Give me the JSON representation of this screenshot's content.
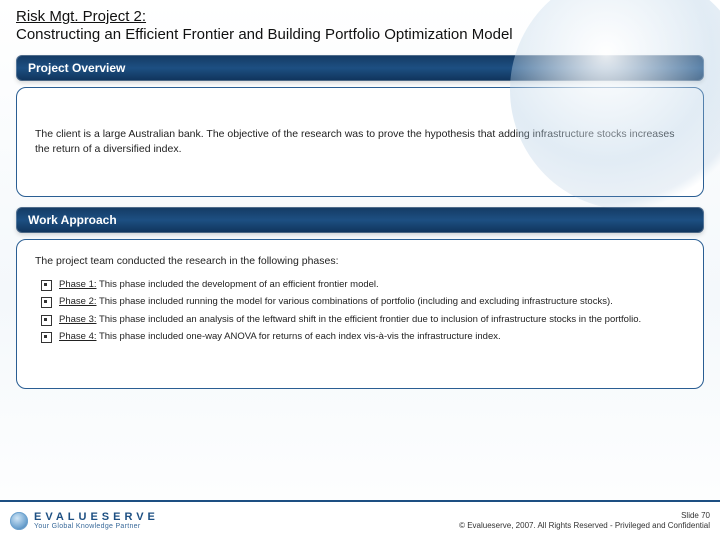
{
  "colors": {
    "header_bg_top": "#143a63",
    "header_bg_mid": "#1d4f82",
    "header_bg_bot": "#0f335a",
    "panel_border": "#2a5e93",
    "brand_primary": "#1d4f82",
    "brand_secondary": "#3a6a9a",
    "text": "#222222",
    "background": "#ffffff"
  },
  "title": {
    "kicker": "Risk Mgt. Project 2:",
    "main": "Constructing an Efficient Frontier and Building Portfolio Optimization Model"
  },
  "overview": {
    "header": "Project  Overview",
    "body": "The client is a large Australian bank. The objective of the research was to prove the hypothesis that adding infrastructure stocks increases the return of a diversified index."
  },
  "approach": {
    "header": "Work Approach",
    "intro": "The project team conducted the research in the following phases:",
    "phases": [
      {
        "label": "Phase 1:",
        "text": " This phase included the development of an efficient frontier model."
      },
      {
        "label": "Phase 2:",
        "text": " This phase included running the model for various combinations of portfolio (including and excluding infrastructure stocks)."
      },
      {
        "label": "Phase 3:",
        "text": " This phase included an analysis of the leftward shift in the efficient frontier due to inclusion of infrastructure stocks in the portfolio."
      },
      {
        "label": "Phase 4:",
        "text": " This phase included one-way ANOVA for returns of each index vis-à-vis the infrastructure index."
      }
    ]
  },
  "footer": {
    "brand_name": "EVALUESERVE",
    "brand_tag": "Your Global Knowledge Partner",
    "slide_label": "Slide 70",
    "copyright": "© Evalueserve, 2007. All Rights Reserved - Privileged and Confidential"
  }
}
